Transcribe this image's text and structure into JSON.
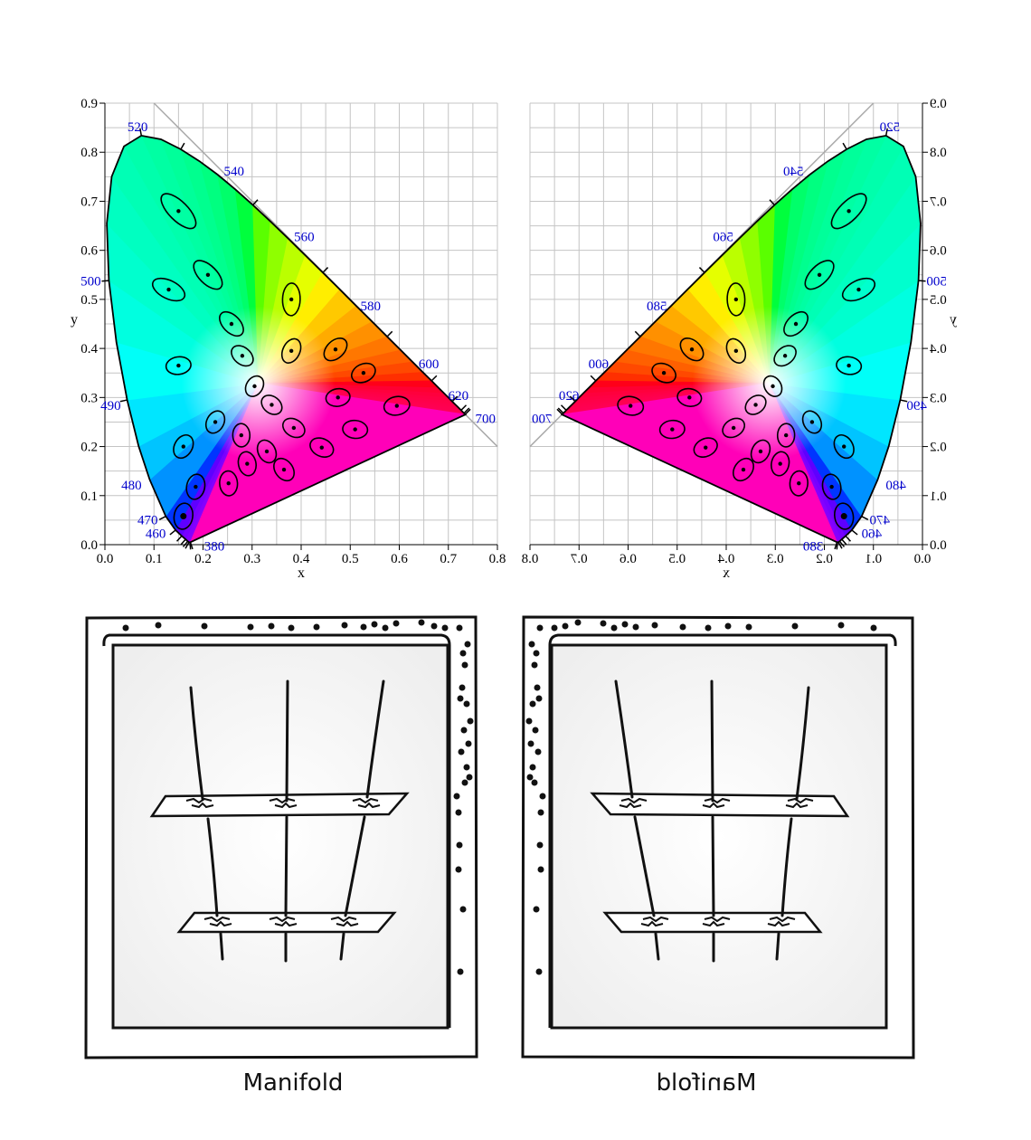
{
  "chart_data": [
    {
      "type": "scatter",
      "title": "",
      "xlabel": "x",
      "ylabel": "y",
      "xlim": [
        0.0,
        0.8
      ],
      "ylim": [
        0.0,
        0.9
      ],
      "x_ticks": [
        "0.0",
        "0.1",
        "0.2",
        "0.3",
        "0.4",
        "0.5",
        "0.6",
        "0.7",
        "0.8"
      ],
      "y_ticks": [
        "0.0",
        "0.1",
        "0.2",
        "0.3",
        "0.4",
        "0.5",
        "0.6",
        "0.7",
        "0.8",
        "0.9"
      ],
      "grid": true,
      "locus_labels": [
        {
          "text": "520",
          "x": 0.074,
          "y": 0.834
        },
        {
          "text": "540",
          "x": 0.23,
          "y": 0.754
        },
        {
          "text": "560",
          "x": 0.373,
          "y": 0.624
        },
        {
          "text": "580",
          "x": 0.512,
          "y": 0.487
        },
        {
          "text": "600",
          "x": 0.627,
          "y": 0.373
        },
        {
          "text": "620",
          "x": 0.691,
          "y": 0.308
        },
        {
          "text": "700",
          "x": 0.735,
          "y": 0.265
        },
        {
          "text": "500",
          "x": 0.008,
          "y": 0.538
        },
        {
          "text": "490",
          "x": 0.045,
          "y": 0.295
        },
        {
          "text": "480",
          "x": 0.091,
          "y": 0.133
        },
        {
          "text": "470",
          "x": 0.124,
          "y": 0.058
        },
        {
          "text": "460",
          "x": 0.144,
          "y": 0.03
        },
        {
          "text": "380",
          "x": 0.175,
          "y": 0.005
        }
      ],
      "ellipse_centers": [
        {
          "x": 0.15,
          "y": 0.68
        },
        {
          "x": 0.21,
          "y": 0.55
        },
        {
          "x": 0.13,
          "y": 0.52
        },
        {
          "x": 0.38,
          "y": 0.5
        },
        {
          "x": 0.258,
          "y": 0.45
        },
        {
          "x": 0.38,
          "y": 0.395
        },
        {
          "x": 0.47,
          "y": 0.398
        },
        {
          "x": 0.15,
          "y": 0.365
        },
        {
          "x": 0.28,
          "y": 0.385
        },
        {
          "x": 0.527,
          "y": 0.35
        },
        {
          "x": 0.305,
          "y": 0.323
        },
        {
          "x": 0.475,
          "y": 0.3
        },
        {
          "x": 0.595,
          "y": 0.283
        },
        {
          "x": 0.34,
          "y": 0.285
        },
        {
          "x": 0.225,
          "y": 0.25
        },
        {
          "x": 0.385,
          "y": 0.238
        },
        {
          "x": 0.51,
          "y": 0.235
        },
        {
          "x": 0.278,
          "y": 0.223
        },
        {
          "x": 0.16,
          "y": 0.2
        },
        {
          "x": 0.442,
          "y": 0.198
        },
        {
          "x": 0.33,
          "y": 0.19
        },
        {
          "x": 0.365,
          "y": 0.153
        },
        {
          "x": 0.29,
          "y": 0.165
        },
        {
          "x": 0.252,
          "y": 0.125
        },
        {
          "x": 0.185,
          "y": 0.118
        },
        {
          "x": 0.16,
          "y": 0.058
        }
      ]
    },
    {
      "type": "scatter",
      "title": "",
      "xlabel": "x",
      "ylabel": "y",
      "mirrored": true,
      "xlim": [
        0.0,
        0.8
      ],
      "ylim": [
        0.0,
        0.9
      ],
      "grid": true
    }
  ],
  "captions": {
    "left": "Manifold",
    "right": "Manifold"
  }
}
